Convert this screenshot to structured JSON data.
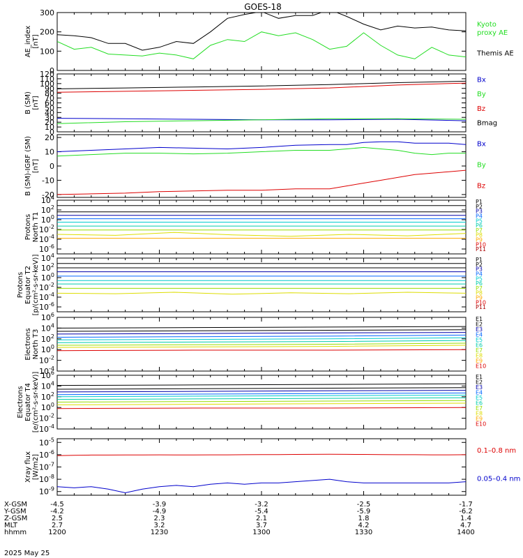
{
  "title": "GOES-18",
  "date": "2025 May 25",
  "colors": {
    "black": "#000000",
    "red": "#dd0000",
    "green": "#22dd22",
    "blue": "#0000cc",
    "levels": [
      "#000000",
      "#000000",
      "#0000aa",
      "#0066ff",
      "#00cccc",
      "#00ccaa",
      "#99dd00",
      "#dddd00",
      "#ffaa00",
      "#dd0000",
      "#aa0000"
    ]
  },
  "time_axis": {
    "range": [
      0,
      120
    ],
    "ticks": [
      0,
      30,
      60,
      90,
      120
    ],
    "rows": [
      {
        "label": "X-GSM",
        "values": [
          "-4.5",
          "-3.9",
          "-3.2",
          "-2.5",
          "-1.7"
        ]
      },
      {
        "label": "Y-GSM",
        "values": [
          "-4.2",
          "-4.9",
          "-5.4",
          "-5.9",
          "-6.2"
        ]
      },
      {
        "label": "Z-GSM",
        "values": [
          "2.5",
          "2.3",
          "2.1",
          "1.8",
          "1.4"
        ]
      },
      {
        "label": "MLT",
        "values": [
          "2.7",
          "3.2",
          "3.7",
          "4.2",
          "4.7"
        ]
      },
      {
        "label": "hhmm",
        "values": [
          "1200",
          "1230",
          "1300",
          "1330",
          "1400"
        ]
      }
    ]
  },
  "chart_data": [
    {
      "type": "line",
      "ylabel": [
        "AE_index",
        "[nT]"
      ],
      "ylim": [
        0,
        300
      ],
      "yticks": [
        "0",
        "100",
        "200",
        "300"
      ],
      "x": [
        0,
        5,
        10,
        15,
        20,
        25,
        30,
        35,
        40,
        45,
        50,
        55,
        60,
        65,
        70,
        75,
        80,
        85,
        90,
        95,
        100,
        105,
        110,
        115,
        120
      ],
      "series": [
        {
          "name": "Kyoto proxy AE",
          "color": "green",
          "values": [
            150,
            110,
            120,
            85,
            80,
            75,
            90,
            80,
            60,
            130,
            160,
            150,
            200,
            180,
            195,
            160,
            110,
            125,
            195,
            130,
            80,
            60,
            120,
            80,
            70
          ]
        },
        {
          "name": "Themis AE",
          "color": "black",
          "values": [
            185,
            180,
            170,
            140,
            140,
            105,
            120,
            150,
            140,
            200,
            270,
            290,
            305,
            270,
            285,
            285,
            315,
            280,
            240,
            210,
            230,
            220,
            225,
            210,
            205
          ]
        }
      ],
      "legend": [
        {
          "lines": [
            "Kyoto",
            "proxy AE"
          ],
          "color": "green"
        },
        {
          "lines": [
            "Themis AE"
          ],
          "color": "black"
        }
      ]
    },
    {
      "type": "line",
      "ylabel": [
        "B (SM)",
        "[nT]"
      ],
      "ylim": [
        0,
        120
      ],
      "yticks": [
        "0",
        "10",
        "20",
        "30",
        "40",
        "50",
        "60",
        "70",
        "80",
        "90",
        "100",
        "110",
        "120"
      ],
      "x": [
        0,
        20,
        40,
        60,
        80,
        100,
        120
      ],
      "series": [
        {
          "name": "Bx",
          "color": "blue",
          "values": [
            28,
            27,
            26,
            25,
            25,
            26,
            23
          ]
        },
        {
          "name": "By",
          "color": "green",
          "values": [
            17,
            21,
            23,
            25,
            27,
            27,
            26
          ]
        },
        {
          "name": "Bz",
          "color": "red",
          "values": [
            82,
            84,
            86,
            88,
            91,
            97,
            101
          ]
        },
        {
          "name": "Bmag",
          "color": "black",
          "values": [
            89,
            91,
            93,
            95,
            98,
            102,
            105
          ]
        }
      ],
      "legend": [
        {
          "lines": [
            "Bx"
          ],
          "color": "blue"
        },
        {
          "lines": [
            "By"
          ],
          "color": "green"
        },
        {
          "lines": [
            "Bz"
          ],
          "color": "red"
        },
        {
          "lines": [
            "Bmag"
          ],
          "color": "black"
        }
      ]
    },
    {
      "type": "line",
      "ylabel": [
        "B (SM)-IGRF (SM)",
        "[nT]"
      ],
      "ylim": [
        -22,
        22
      ],
      "ytick_values": [
        -20,
        -10,
        0,
        10,
        20
      ],
      "yticks": [
        "-20",
        "-10",
        "0",
        "10",
        "20"
      ],
      "x": [
        0,
        10,
        20,
        30,
        40,
        50,
        60,
        70,
        80,
        85,
        90,
        95,
        100,
        105,
        110,
        115,
        120
      ],
      "series": [
        {
          "name": "Bx",
          "color": "blue",
          "values": [
            10,
            11,
            12,
            13,
            12.5,
            12,
            13,
            14.5,
            15,
            15,
            16.5,
            17,
            17,
            16,
            16,
            16,
            15
          ]
        },
        {
          "name": "By",
          "color": "green",
          "values": [
            7,
            8,
            9,
            9,
            8.5,
            9,
            10,
            11,
            11,
            12,
            13,
            12,
            11,
            9,
            8,
            9,
            9
          ]
        },
        {
          "name": "Bz",
          "color": "red",
          "values": [
            -20,
            -19.5,
            -19,
            -18,
            -17.5,
            -17,
            -17,
            -16,
            -16,
            -14,
            -12,
            -10,
            -8,
            -6,
            -5,
            -4,
            -3
          ]
        }
      ],
      "legend": [
        {
          "lines": [
            "Bx"
          ],
          "color": "blue"
        },
        {
          "lines": [
            "By"
          ],
          "color": "green"
        },
        {
          "lines": [
            "Bz"
          ],
          "color": "red"
        }
      ]
    },
    {
      "type": "line",
      "log": true,
      "ylabel": [
        "Protons",
        "North T1"
      ],
      "ylim_exp": [
        -7,
        4
      ],
      "yticks_exp": [
        -6,
        -4,
        -2,
        0,
        2,
        4
      ],
      "legend_labels": [
        "P1",
        "P2",
        "P3",
        "P4",
        "P5",
        "P6",
        "P7",
        "P8",
        "P9",
        "P10",
        "P11"
      ],
      "series": [
        {
          "name": "P1",
          "color_index": 0,
          "values": [
            2.9
          ]
        },
        {
          "name": "P2",
          "color_index": 1,
          "values": [
            1.6
          ]
        },
        {
          "name": "P3",
          "color_index": 2,
          "values": [
            0.9
          ]
        },
        {
          "name": "P4",
          "color_index": 3,
          "values": [
            0.2
          ]
        },
        {
          "name": "P5",
          "color_index": 4,
          "values": [
            -0.5
          ]
        },
        {
          "name": "P6",
          "color_index": 5,
          "values": [
            -1.3
          ]
        },
        {
          "name": "P7",
          "color_index": 6,
          "values": [
            -2.1
          ]
        },
        {
          "name": "P8",
          "color_index": 7,
          "values": [
            -3.0,
            -3.2,
            -2.6,
            -3.1,
            -3.4,
            -3.0,
            -3.3,
            -2.8
          ]
        },
        {
          "name": "P9",
          "color_index": 8,
          "values": [
            -3.8
          ]
        }
      ]
    },
    {
      "type": "line",
      "log": true,
      "ylabel": [
        "Protons",
        "Equator T2",
        "[p/(cm²-s-sr-keV)]"
      ],
      "ylim_exp": [
        -7,
        4
      ],
      "yticks_exp": [
        -6,
        -4,
        -2,
        0,
        2,
        4
      ],
      "legend_labels": [
        "P1",
        "P2",
        "P3",
        "P4",
        "P5",
        "P6",
        "P7",
        "P8",
        "P9",
        "P10",
        "P11"
      ],
      "series": [
        {
          "name": "P1",
          "color_index": 0,
          "values": [
            2.9
          ]
        },
        {
          "name": "P2",
          "color_index": 1,
          "values": [
            2.0
          ]
        },
        {
          "name": "P3",
          "color_index": 2,
          "values": [
            1.2
          ]
        },
        {
          "name": "P4",
          "color_index": 3,
          "values": [
            0.3
          ]
        },
        {
          "name": "P5",
          "color_index": 4,
          "values": [
            -0.6
          ]
        },
        {
          "name": "P6",
          "color_index": 5,
          "values": [
            -1.3
          ]
        },
        {
          "name": "P7",
          "color_index": 6,
          "values": [
            -2.2
          ]
        },
        {
          "name": "P8",
          "color_index": 7,
          "values": [
            -3.2,
            -3.3,
            -3.0,
            -3.4,
            -3.1,
            -3.3,
            -3.0,
            -3.2
          ]
        }
      ]
    },
    {
      "type": "line",
      "log": true,
      "ylabel": [
        "Electrons",
        "North T3"
      ],
      "ylim_exp": [
        -4,
        6
      ],
      "yticks_exp": [
        -4,
        -2,
        0,
        2,
        4,
        6
      ],
      "legend_labels": [
        "E1",
        "E2",
        "E3",
        "E4",
        "E5",
        "E6",
        "E7",
        "E8",
        "E9",
        "E10"
      ],
      "series": [
        {
          "name": "E1",
          "color_index": 0,
          "values": [
            4.0,
            4.1,
            4.2,
            4.3
          ]
        },
        {
          "name": "E2",
          "color_index": 1,
          "values": [
            3.4,
            3.5,
            3.6,
            3.7
          ]
        },
        {
          "name": "E3",
          "color_index": 2,
          "values": [
            2.9,
            3.0,
            3.1,
            3.2
          ]
        },
        {
          "name": "E4",
          "color_index": 3,
          "values": [
            2.3,
            2.4,
            2.5,
            2.7
          ]
        },
        {
          "name": "E5",
          "color_index": 4,
          "values": [
            1.8,
            1.9,
            2.0,
            2.2
          ]
        },
        {
          "name": "E6",
          "color_index": 5,
          "values": [
            1.3,
            1.4,
            1.5,
            1.7
          ]
        },
        {
          "name": "E7",
          "color_index": 6,
          "values": [
            0.8,
            0.9,
            1.0,
            1.2
          ]
        },
        {
          "name": "E8",
          "color_index": 7,
          "values": [
            0.4,
            0.5,
            0.6,
            0.8
          ]
        },
        {
          "name": "E9",
          "color_index": 9,
          "values": [
            -0.2,
            -0.1,
            -0.1,
            0.0
          ]
        }
      ]
    },
    {
      "type": "line",
      "log": true,
      "ylabel": [
        "Electrons",
        "Equator T4",
        "[e/(cm²-s-sr-keV)]"
      ],
      "ylim_exp": [
        -4,
        6
      ],
      "yticks_exp": [
        -4,
        -2,
        0,
        2,
        4,
        6
      ],
      "legend_labels": [
        "E1",
        "E2",
        "E3",
        "E4",
        "E5",
        "E6",
        "E7",
        "E8",
        "E9",
        "E10"
      ],
      "series": [
        {
          "name": "E1",
          "color_index": 0,
          "values": [
            4.1,
            4.2,
            4.3,
            4.4
          ]
        },
        {
          "name": "E2",
          "color_index": 1,
          "values": [
            3.4,
            3.5,
            3.6,
            3.7
          ]
        },
        {
          "name": "E3",
          "color_index": 2,
          "values": [
            2.9,
            3.0,
            3.1,
            3.2
          ]
        },
        {
          "name": "E4",
          "color_index": 3,
          "values": [
            2.4,
            2.5,
            2.6,
            2.7
          ]
        },
        {
          "name": "E5",
          "color_index": 4,
          "values": [
            2.0,
            2.1,
            2.2,
            2.3
          ]
        },
        {
          "name": "E6",
          "color_index": 5,
          "values": [
            1.5,
            1.6,
            1.7,
            1.8
          ]
        },
        {
          "name": "E7",
          "color_index": 6,
          "values": [
            1.0,
            1.1,
            1.2,
            1.3
          ]
        },
        {
          "name": "E8",
          "color_index": 7,
          "values": [
            0.5,
            0.6,
            0.7,
            0.8
          ]
        },
        {
          "name": "E9",
          "color_index": 9,
          "values": [
            -0.2,
            -0.1,
            -0.1,
            0.0
          ]
        }
      ]
    },
    {
      "type": "line",
      "log": true,
      "ylabel": [
        "Xray flux",
        "[W/m2]"
      ],
      "ylim_exp": [
        -9.3,
        -4.7
      ],
      "yticks_exp": [
        -9,
        -8,
        -7,
        -6,
        -5
      ],
      "x": [
        0,
        5,
        10,
        15,
        20,
        25,
        30,
        35,
        40,
        45,
        50,
        55,
        60,
        65,
        70,
        75,
        80,
        85,
        90,
        95,
        100,
        105,
        110,
        115,
        120
      ],
      "series": [
        {
          "name": "0.1–0.8 nm",
          "color": "red",
          "values": [
            -6.08,
            -6.05,
            -6.03,
            -6.03,
            -6.02,
            -6.02,
            -6.01,
            -6.02,
            -6.02,
            -6.01,
            -6.01,
            -6.0,
            -5.99,
            -5.99,
            -5.98,
            -5.97,
            -5.96,
            -5.97,
            -5.98,
            -5.99,
            -6.0,
            -6.0,
            -6.01,
            -6.01,
            -6.0
          ]
        },
        {
          "name": "0.05–0.4 nm",
          "color": "blue",
          "values": [
            -8.6,
            -8.7,
            -8.6,
            -8.8,
            -9.1,
            -8.8,
            -8.6,
            -8.5,
            -8.6,
            -8.4,
            -8.3,
            -8.4,
            -8.3,
            -8.3,
            -8.2,
            -8.1,
            -8.0,
            -8.2,
            -8.3,
            -8.3,
            -8.3,
            -8.3,
            -8.3,
            -8.3,
            -8.2
          ]
        }
      ],
      "legend": [
        {
          "lines": [
            "0.1–0.8 nm"
          ],
          "color": "red"
        },
        {
          "lines": [
            "0.05–0.4 nm"
          ],
          "color": "blue"
        }
      ]
    }
  ]
}
